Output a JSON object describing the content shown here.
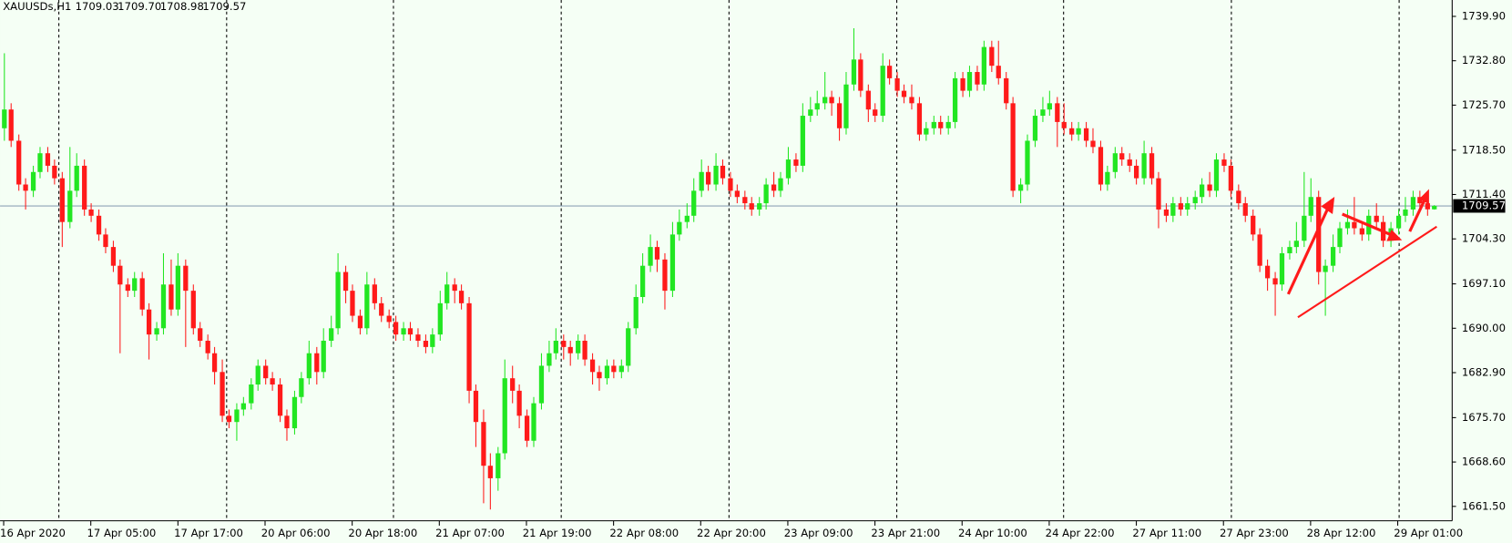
{
  "chart_data": {
    "type": "candlestick",
    "title": "XAUUSDs,H1",
    "header_values": [
      "1709.03",
      "1709.70",
      "1708.98",
      "1709.57"
    ],
    "up_color": "#22e622",
    "down_color": "#ff1a1a",
    "price_line": {
      "value": 1709.57,
      "label": "1709.57"
    },
    "xlim": [
      -0.5,
      199.5
    ],
    "ylim": [
      1659.19,
      1742.52
    ],
    "yticks": [
      {
        "value": 1739.9,
        "label": "1739.90"
      },
      {
        "value": 1732.8,
        "label": "1732.80"
      },
      {
        "value": 1725.7,
        "label": "1725.70"
      },
      {
        "value": 1718.5,
        "label": "1718.50"
      },
      {
        "value": 1711.4,
        "label": "1711.40"
      },
      {
        "value": 1704.3,
        "label": "1704.30"
      },
      {
        "value": 1697.1,
        "label": "1697.10"
      },
      {
        "value": 1690,
        "label": "1690.00"
      },
      {
        "value": 1682.9,
        "label": "1682.90"
      },
      {
        "value": 1675.7,
        "label": "1675.70"
      },
      {
        "value": 1668.6,
        "label": "1668.60"
      },
      {
        "value": 1661.5,
        "label": "1661.50"
      }
    ],
    "xticks": [
      {
        "value": 0,
        "label": "16 Apr 2020"
      },
      {
        "value": 12,
        "label": "17 Apr 05:00"
      },
      {
        "value": 24,
        "label": "17 Apr 17:00"
      },
      {
        "value": 36,
        "label": "20 Apr 06:00"
      },
      {
        "value": 48,
        "label": "20 Apr 18:00"
      },
      {
        "value": 60,
        "label": "21 Apr 07:00"
      },
      {
        "value": 72,
        "label": "21 Apr 19:00"
      },
      {
        "value": 84,
        "label": "22 Apr 08:00"
      },
      {
        "value": 96,
        "label": "22 Apr 20:00"
      },
      {
        "value": 108,
        "label": "23 Apr 09:00"
      },
      {
        "value": 120,
        "label": "23 Apr 21:00"
      },
      {
        "value": 132,
        "label": "24 Apr 10:00"
      },
      {
        "value": 144,
        "label": "24 Apr 22:00"
      },
      {
        "value": 156,
        "label": "27 Apr 11:00"
      },
      {
        "value": 168,
        "label": "27 Apr 23:00"
      },
      {
        "value": 180,
        "label": "28 Apr 12:00"
      },
      {
        "value": 192,
        "label": "29 Apr 01:00"
      }
    ],
    "ohlc": [
      [
        1722,
        1734,
        1720,
        1725
      ],
      [
        1725,
        1726,
        1719,
        1720
      ],
      [
        1720,
        1721,
        1712,
        1713
      ],
      [
        1713,
        1714,
        1709,
        1712
      ],
      [
        1712,
        1716,
        1711,
        1715
      ],
      [
        1715,
        1719,
        1714,
        1718
      ],
      [
        1718,
        1719,
        1715,
        1716
      ],
      [
        1716,
        1717,
        1713,
        1714
      ],
      [
        1714,
        1715,
        1703,
        1707
      ],
      [
        1707,
        1719,
        1706,
        1712
      ],
      [
        1712,
        1718,
        1711,
        1716
      ],
      [
        1716,
        1717,
        1708,
        1709
      ],
      [
        1709,
        1710,
        1707,
        1708
      ],
      [
        1708,
        1709,
        1704,
        1705
      ],
      [
        1705,
        1706,
        1702,
        1703
      ],
      [
        1703,
        1704,
        1699,
        1700
      ],
      [
        1700,
        1701,
        1686,
        1697
      ],
      [
        1697,
        1698,
        1695,
        1696
      ],
      [
        1696,
        1699,
        1695,
        1698
      ],
      [
        1698,
        1699,
        1692,
        1693
      ],
      [
        1693,
        1694,
        1685,
        1689
      ],
      [
        1689,
        1691,
        1688,
        1690
      ],
      [
        1690,
        1702,
        1689,
        1697
      ],
      [
        1697,
        1701,
        1692,
        1693
      ],
      [
        1693,
        1702,
        1692,
        1700
      ],
      [
        1700,
        1701,
        1687,
        1696
      ],
      [
        1696,
        1697,
        1689,
        1690
      ],
      [
        1690,
        1691,
        1687,
        1688
      ],
      [
        1688,
        1689,
        1685,
        1686
      ],
      [
        1686,
        1687,
        1681,
        1683
      ],
      [
        1683,
        1685,
        1675,
        1676
      ],
      [
        1676,
        1677,
        1674,
        1675
      ],
      [
        1675,
        1678,
        1672,
        1677
      ],
      [
        1677,
        1679,
        1676,
        1678
      ],
      [
        1678,
        1682,
        1677,
        1681
      ],
      [
        1681,
        1685,
        1680,
        1684
      ],
      [
        1684,
        1685,
        1681,
        1682
      ],
      [
        1682,
        1683,
        1680,
        1681
      ],
      [
        1681,
        1682,
        1675,
        1676
      ],
      [
        1676,
        1677,
        1672,
        1674
      ],
      [
        1674,
        1680,
        1673,
        1679
      ],
      [
        1679,
        1683,
        1678,
        1682
      ],
      [
        1682,
        1688,
        1681,
        1686
      ],
      [
        1686,
        1687,
        1681,
        1683
      ],
      [
        1683,
        1690,
        1682,
        1688
      ],
      [
        1688,
        1692,
        1687,
        1690
      ],
      [
        1690,
        1702,
        1689,
        1699
      ],
      [
        1699,
        1700,
        1694,
        1696
      ],
      [
        1696,
        1697,
        1691,
        1692
      ],
      [
        1692,
        1693,
        1689,
        1690
      ],
      [
        1690,
        1699,
        1689,
        1697
      ],
      [
        1697,
        1698,
        1693,
        1694
      ],
      [
        1694,
        1695,
        1691,
        1692
      ],
      [
        1692,
        1693,
        1690,
        1691
      ],
      [
        1691,
        1692,
        1688,
        1689
      ],
      [
        1689,
        1691,
        1688,
        1690
      ],
      [
        1690,
        1691,
        1688,
        1689
      ],
      [
        1689,
        1690,
        1687,
        1688
      ],
      [
        1688,
        1689,
        1686,
        1687
      ],
      [
        1687,
        1690,
        1686,
        1689
      ],
      [
        1689,
        1696,
        1688,
        1694
      ],
      [
        1694,
        1699,
        1693,
        1697
      ],
      [
        1697,
        1698,
        1694,
        1696
      ],
      [
        1696,
        1697,
        1693,
        1694
      ],
      [
        1694,
        1695,
        1678,
        1680
      ],
      [
        1680,
        1681,
        1671,
        1675
      ],
      [
        1675,
        1677,
        1662,
        1668
      ],
      [
        1668,
        1670,
        1661,
        1666
      ],
      [
        1666,
        1671,
        1664,
        1670
      ],
      [
        1670,
        1685,
        1669,
        1682
      ],
      [
        1682,
        1684,
        1678,
        1680
      ],
      [
        1680,
        1681,
        1674,
        1676
      ],
      [
        1676,
        1677,
        1671,
        1672
      ],
      [
        1672,
        1679,
        1671,
        1678
      ],
      [
        1678,
        1686,
        1677,
        1684
      ],
      [
        1684,
        1688,
        1683,
        1686
      ],
      [
        1686,
        1690,
        1685,
        1688
      ],
      [
        1688,
        1689,
        1685,
        1687
      ],
      [
        1687,
        1688,
        1684,
        1686
      ],
      [
        1686,
        1689,
        1685,
        1688
      ],
      [
        1688,
        1689,
        1684,
        1685
      ],
      [
        1685,
        1686,
        1681,
        1683
      ],
      [
        1683,
        1684,
        1680,
        1682
      ],
      [
        1682,
        1685,
        1681,
        1684
      ],
      [
        1684,
        1685,
        1682,
        1683
      ],
      [
        1683,
        1685,
        1682,
        1684
      ],
      [
        1684,
        1691,
        1683,
        1690
      ],
      [
        1690,
        1697,
        1689,
        1695
      ],
      [
        1695,
        1702,
        1694,
        1700
      ],
      [
        1700,
        1705,
        1699,
        1703
      ],
      [
        1703,
        1704,
        1699,
        1701
      ],
      [
        1701,
        1702,
        1693,
        1696
      ],
      [
        1696,
        1707,
        1695,
        1705
      ],
      [
        1705,
        1709,
        1704,
        1707
      ],
      [
        1707,
        1710,
        1706,
        1708
      ],
      [
        1708,
        1714,
        1707,
        1712
      ],
      [
        1712,
        1717,
        1711,
        1715
      ],
      [
        1715,
        1716,
        1712,
        1713
      ],
      [
        1713,
        1718,
        1712,
        1716
      ],
      [
        1716,
        1717,
        1713,
        1714
      ],
      [
        1714,
        1715,
        1711,
        1712
      ],
      [
        1712,
        1713,
        1710,
        1711
      ],
      [
        1711,
        1712,
        1709,
        1710
      ],
      [
        1710,
        1711,
        1708,
        1709
      ],
      [
        1709,
        1711,
        1708,
        1710
      ],
      [
        1710,
        1714,
        1709,
        1713
      ],
      [
        1713,
        1715,
        1711,
        1712
      ],
      [
        1712,
        1715,
        1711,
        1714
      ],
      [
        1714,
        1719,
        1713,
        1717
      ],
      [
        1717,
        1718,
        1715,
        1716
      ],
      [
        1716,
        1726,
        1715,
        1724
      ],
      [
        1724,
        1727,
        1723,
        1725
      ],
      [
        1725,
        1728,
        1724,
        1726
      ],
      [
        1726,
        1731,
        1725,
        1727
      ],
      [
        1727,
        1728,
        1724,
        1726
      ],
      [
        1726,
        1727,
        1720,
        1722
      ],
      [
        1722,
        1731,
        1721,
        1729
      ],
      [
        1729,
        1738,
        1728,
        1733
      ],
      [
        1733,
        1734,
        1727,
        1728
      ],
      [
        1728,
        1729,
        1723,
        1725
      ],
      [
        1725,
        1726,
        1723,
        1724
      ],
      [
        1724,
        1734,
        1723,
        1732
      ],
      [
        1732,
        1733,
        1729,
        1730
      ],
      [
        1730,
        1731,
        1727,
        1728
      ],
      [
        1728,
        1729,
        1726,
        1727
      ],
      [
        1727,
        1729,
        1725,
        1726
      ],
      [
        1726,
        1727,
        1720,
        1721
      ],
      [
        1721,
        1723,
        1720,
        1722
      ],
      [
        1722,
        1724,
        1721,
        1723
      ],
      [
        1723,
        1724,
        1721,
        1722
      ],
      [
        1722,
        1724,
        1721,
        1723
      ],
      [
        1723,
        1731,
        1722,
        1730
      ],
      [
        1730,
        1731,
        1727,
        1728
      ],
      [
        1728,
        1732,
        1727,
        1731
      ],
      [
        1731,
        1732,
        1728,
        1729
      ],
      [
        1729,
        1736,
        1728,
        1735
      ],
      [
        1735,
        1736,
        1731,
        1732
      ],
      [
        1732,
        1736,
        1729,
        1730
      ],
      [
        1730,
        1731,
        1725,
        1726
      ],
      [
        1726,
        1727,
        1711,
        1712
      ],
      [
        1712,
        1714,
        1710,
        1713
      ],
      [
        1713,
        1721,
        1712,
        1720
      ],
      [
        1720,
        1725,
        1719,
        1724
      ],
      [
        1724,
        1727,
        1723,
        1725
      ],
      [
        1725,
        1728,
        1724,
        1726
      ],
      [
        1726,
        1727,
        1719,
        1723
      ],
      [
        1723,
        1726,
        1721,
        1722
      ],
      [
        1722,
        1723,
        1720,
        1721
      ],
      [
        1721,
        1723,
        1720,
        1722
      ],
      [
        1722,
        1723,
        1719,
        1720
      ],
      [
        1720,
        1722,
        1718,
        1719
      ],
      [
        1719,
        1720,
        1712,
        1713
      ],
      [
        1713,
        1716,
        1712,
        1715
      ],
      [
        1715,
        1719,
        1714,
        1718
      ],
      [
        1718,
        1719,
        1716,
        1717
      ],
      [
        1717,
        1718,
        1715,
        1716
      ],
      [
        1716,
        1717,
        1713,
        1714
      ],
      [
        1714,
        1720,
        1713,
        1718
      ],
      [
        1718,
        1719,
        1713,
        1714
      ],
      [
        1714,
        1715,
        1706,
        1709
      ],
      [
        1709,
        1710,
        1707,
        1708
      ],
      [
        1708,
        1711,
        1707,
        1710
      ],
      [
        1710,
        1711,
        1708,
        1709
      ],
      [
        1709,
        1711,
        1708,
        1710
      ],
      [
        1710,
        1712,
        1709,
        1711
      ],
      [
        1711,
        1714,
        1710,
        1713
      ],
      [
        1713,
        1715,
        1711,
        1712
      ],
      [
        1712,
        1718,
        1711,
        1717
      ],
      [
        1717,
        1718,
        1715,
        1716
      ],
      [
        1716,
        1717,
        1711,
        1712
      ],
      [
        1712,
        1713,
        1709,
        1710
      ],
      [
        1710,
        1711,
        1707,
        1708
      ],
      [
        1708,
        1709,
        1704,
        1705
      ],
      [
        1705,
        1706,
        1699,
        1700
      ],
      [
        1700,
        1701,
        1696,
        1698
      ],
      [
        1698,
        1699,
        1692,
        1697
      ],
      [
        1697,
        1703,
        1696,
        1702
      ],
      [
        1702,
        1704,
        1701,
        1703
      ],
      [
        1703,
        1707,
        1702,
        1704
      ],
      [
        1704,
        1715,
        1703,
        1708
      ],
      [
        1708,
        1714,
        1707,
        1711
      ],
      [
        1711,
        1712,
        1697,
        1699
      ],
      [
        1699,
        1701,
        1692,
        1700
      ],
      [
        1700,
        1705,
        1699,
        1703
      ],
      [
        1703,
        1707,
        1702,
        1706
      ],
      [
        1706,
        1709,
        1705,
        1707
      ],
      [
        1707,
        1711,
        1705,
        1706
      ],
      [
        1706,
        1707,
        1704,
        1705
      ],
      [
        1705,
        1709,
        1704,
        1708
      ],
      [
        1708,
        1710,
        1706,
        1707
      ],
      [
        1707,
        1708,
        1703,
        1704
      ],
      [
        1704,
        1707,
        1703,
        1706
      ],
      [
        1706,
        1709,
        1705,
        1708
      ],
      [
        1708,
        1711,
        1707,
        1709
      ],
      [
        1709,
        1712,
        1708,
        1711
      ],
      [
        1711,
        1712,
        1709,
        1710
      ],
      [
        1710,
        1711,
        1708,
        1709.03
      ],
      [
        1709.03,
        1709.7,
        1708.98,
        1709.57
      ]
    ]
  }
}
